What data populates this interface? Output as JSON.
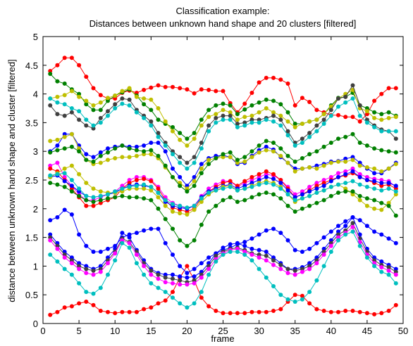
{
  "chart_data": {
    "type": "line",
    "title": "Classification example:",
    "subtitle": "Distances between unknown hand shape and 20 clusters [filtered]",
    "xlabel": "frame",
    "ylabel": "distance between unknown hand shape and cluster [filtered]",
    "xlim": [
      0,
      50
    ],
    "ylim": [
      0,
      5
    ],
    "xticks": [
      0,
      5,
      10,
      15,
      20,
      25,
      30,
      35,
      40,
      45,
      50
    ],
    "yticks": [
      0,
      0.5,
      1,
      1.5,
      2,
      2.5,
      3,
      3.5,
      4,
      4.5,
      5
    ],
    "grid": false,
    "x": [
      1,
      2,
      3,
      4,
      5,
      6,
      7,
      8,
      9,
      10,
      11,
      12,
      13,
      14,
      15,
      16,
      17,
      18,
      19,
      20,
      21,
      22,
      23,
      24,
      25,
      26,
      27,
      28,
      29,
      30,
      31,
      32,
      33,
      34,
      35,
      36,
      37,
      38,
      39,
      40,
      41,
      42,
      43,
      44,
      45,
      46,
      47,
      48,
      49
    ],
    "series": [
      {
        "color": "#ff0000",
        "values": [
          4.4,
          4.5,
          4.63,
          4.63,
          4.5,
          4.3,
          4.1,
          3.98,
          3.92,
          3.92,
          4.02,
          4.06,
          4.02,
          4.07,
          4.11,
          4.15,
          4.12,
          4.12,
          4.1,
          4.08,
          4.01,
          4.08,
          4.07,
          4.05,
          4.05,
          3.84,
          3.68,
          3.83,
          4.02,
          4.2,
          4.28,
          4.28,
          4.25,
          4.18,
          3.8,
          3.93,
          3.86,
          3.72,
          3.68,
          3.63,
          3.63,
          3.6,
          3.6,
          3.52,
          3.65,
          3.88,
          4.0,
          4.1,
          4.1
        ]
      },
      {
        "color": "#008000",
        "values": [
          4.35,
          4.22,
          4.18,
          4.08,
          4.0,
          3.82,
          3.72,
          3.72,
          3.88,
          3.97,
          4.03,
          4.08,
          3.97,
          3.82,
          3.72,
          3.55,
          3.48,
          3.42,
          3.32,
          3.22,
          3.32,
          3.55,
          3.72,
          3.8,
          3.83,
          3.8,
          3.65,
          3.73,
          3.8,
          3.85,
          3.9,
          3.88,
          3.82,
          3.68,
          3.48,
          3.48,
          3.52,
          3.55,
          3.65,
          3.8,
          3.93,
          3.95,
          4.02,
          3.8,
          3.75,
          3.68,
          3.65,
          3.68,
          3.62
        ]
      },
      {
        "color": "#bfbf00",
        "values": [
          3.92,
          3.95,
          3.98,
          4.05,
          3.95,
          3.88,
          3.8,
          3.85,
          3.93,
          3.97,
          4.05,
          4.1,
          3.95,
          3.92,
          3.9,
          3.75,
          3.52,
          3.35,
          3.2,
          3.1,
          3.22,
          3.45,
          3.6,
          3.65,
          3.72,
          3.68,
          3.55,
          3.6,
          3.62,
          3.68,
          3.75,
          3.68,
          3.62,
          3.52,
          3.42,
          3.48,
          3.52,
          3.55,
          3.65,
          3.78,
          3.92,
          4.0,
          4.07,
          3.75,
          3.7,
          3.58,
          3.55,
          3.58,
          3.6
        ]
      },
      {
        "color": "#404040",
        "values": [
          3.8,
          3.65,
          3.62,
          3.68,
          3.55,
          3.45,
          3.4,
          3.58,
          3.7,
          3.82,
          3.92,
          3.9,
          3.72,
          3.62,
          3.52,
          3.32,
          3.15,
          3.0,
          2.9,
          2.8,
          2.9,
          3.15,
          3.45,
          3.58,
          3.62,
          3.62,
          3.48,
          3.5,
          3.55,
          3.55,
          3.58,
          3.62,
          3.55,
          3.35,
          3.15,
          3.22,
          3.32,
          3.45,
          3.55,
          3.72,
          3.92,
          3.95,
          4.15,
          3.8,
          3.55,
          3.45,
          3.38,
          3.35,
          3.22
        ]
      },
      {
        "color": "#00bfbf",
        "values": [
          3.92,
          3.85,
          3.82,
          3.75,
          3.7,
          3.55,
          3.45,
          3.5,
          3.62,
          3.75,
          3.83,
          3.8,
          3.68,
          3.58,
          3.45,
          3.25,
          3.1,
          2.95,
          2.8,
          2.7,
          2.8,
          3.05,
          3.35,
          3.5,
          3.55,
          3.55,
          3.42,
          3.45,
          3.5,
          3.5,
          3.55,
          3.52,
          3.45,
          3.28,
          3.1,
          3.15,
          3.25,
          3.35,
          3.48,
          3.62,
          3.78,
          3.85,
          3.92,
          3.62,
          3.5,
          3.42,
          3.35,
          3.35,
          3.35
        ]
      },
      {
        "color": "#0000ff",
        "values": [
          3.0,
          3.1,
          3.3,
          3.3,
          3.1,
          2.95,
          2.9,
          2.98,
          3.05,
          3.08,
          3.1,
          3.08,
          3.08,
          3.1,
          3.15,
          3.15,
          3.0,
          2.7,
          2.55,
          2.4,
          2.55,
          2.78,
          2.88,
          2.92,
          2.93,
          2.9,
          2.78,
          2.8,
          2.92,
          3.02,
          3.08,
          3.03,
          2.9,
          2.8,
          2.7,
          2.7,
          2.72,
          2.75,
          2.78,
          2.82,
          2.83,
          2.87,
          2.9,
          2.8,
          2.7,
          2.62,
          2.62,
          2.7,
          2.8
        ]
      },
      {
        "color": "#bfbf00",
        "values": [
          3.18,
          3.2,
          3.25,
          3.3,
          3.05,
          2.85,
          2.78,
          2.8,
          2.85,
          2.88,
          2.9,
          2.9,
          2.92,
          2.95,
          2.95,
          2.88,
          2.72,
          2.55,
          2.45,
          2.35,
          2.48,
          2.7,
          2.85,
          2.88,
          2.9,
          2.9,
          2.8,
          2.82,
          2.9,
          2.98,
          3.02,
          3.0,
          2.92,
          2.8,
          2.65,
          2.7,
          2.72,
          2.7,
          2.75,
          2.8,
          2.82,
          2.82,
          2.85,
          2.75,
          2.72,
          2.7,
          2.65,
          2.7,
          2.78
        ]
      },
      {
        "color": "#008000",
        "values": [
          2.98,
          3.02,
          3.05,
          3.08,
          3.0,
          2.85,
          2.82,
          2.92,
          2.98,
          3.05,
          3.1,
          3.05,
          3.02,
          3.0,
          3.02,
          2.92,
          2.75,
          2.55,
          2.4,
          2.3,
          2.4,
          2.62,
          2.78,
          2.88,
          2.95,
          2.98,
          2.85,
          2.9,
          3.0,
          3.1,
          3.18,
          3.15,
          3.05,
          2.92,
          2.82,
          2.88,
          2.95,
          3.0,
          3.08,
          3.15,
          3.22,
          3.25,
          3.3,
          3.15,
          3.1,
          3.05,
          3.02,
          3.0,
          2.98
        ]
      },
      {
        "color": "#ff00ff",
        "values": [
          2.75,
          2.8,
          2.55,
          2.4,
          2.25,
          2.15,
          2.15,
          2.2,
          2.25,
          2.3,
          2.4,
          2.5,
          2.55,
          2.55,
          2.5,
          2.38,
          2.2,
          2.1,
          2.05,
          2.0,
          2.05,
          2.22,
          2.35,
          2.42,
          2.48,
          2.48,
          2.38,
          2.45,
          2.5,
          2.55,
          2.6,
          2.58,
          2.5,
          2.38,
          2.25,
          2.3,
          2.38,
          2.45,
          2.5,
          2.55,
          2.62,
          2.65,
          2.7,
          2.6,
          2.55,
          2.52,
          2.5,
          2.48,
          2.38
        ]
      },
      {
        "color": "#ff0000",
        "values": [
          2.7,
          2.65,
          2.5,
          2.35,
          2.2,
          2.05,
          2.05,
          2.1,
          2.15,
          2.2,
          2.35,
          2.45,
          2.5,
          2.52,
          2.48,
          2.35,
          2.15,
          2.02,
          1.98,
          1.95,
          2.0,
          2.18,
          2.3,
          2.38,
          2.45,
          2.48,
          2.4,
          2.48,
          2.55,
          2.6,
          2.65,
          2.6,
          2.5,
          2.35,
          2.2,
          2.25,
          2.32,
          2.4,
          2.45,
          2.5,
          2.55,
          2.58,
          2.62,
          2.55,
          2.5,
          2.45,
          2.4,
          2.42,
          2.35
        ]
      },
      {
        "color": "#0000ff",
        "values": [
          2.55,
          2.58,
          2.48,
          2.4,
          2.3,
          2.22,
          2.2,
          2.22,
          2.25,
          2.28,
          2.35,
          2.4,
          2.42,
          2.4,
          2.38,
          2.28,
          2.12,
          2.05,
          2.02,
          2.0,
          2.05,
          2.2,
          2.3,
          2.35,
          2.4,
          2.42,
          2.35,
          2.4,
          2.45,
          2.5,
          2.55,
          2.52,
          2.45,
          2.32,
          2.2,
          2.25,
          2.3,
          2.35,
          2.4,
          2.48,
          2.55,
          2.6,
          2.65,
          2.55,
          2.5,
          2.48,
          2.45,
          2.45,
          2.4
        ]
      },
      {
        "color": "#bfbf00",
        "values": [
          2.55,
          2.62,
          2.7,
          2.75,
          2.6,
          2.45,
          2.35,
          2.3,
          2.28,
          2.28,
          2.3,
          2.35,
          2.35,
          2.35,
          2.32,
          2.2,
          2.05,
          1.95,
          1.92,
          1.9,
          1.98,
          2.12,
          2.25,
          2.32,
          2.38,
          2.4,
          2.32,
          2.35,
          2.4,
          2.45,
          2.48,
          2.45,
          2.38,
          2.25,
          2.12,
          2.18,
          2.22,
          2.28,
          2.32,
          2.38,
          2.42,
          2.35,
          2.25,
          2.15,
          2.05,
          2.0,
          1.98,
          2.1,
          2.25
        ]
      },
      {
        "color": "#00bfbf",
        "values": [
          2.58,
          2.6,
          2.62,
          2.5,
          2.35,
          2.22,
          2.2,
          2.22,
          2.25,
          2.3,
          2.35,
          2.38,
          2.4,
          2.42,
          2.38,
          2.28,
          2.15,
          2.08,
          2.05,
          2.02,
          2.05,
          2.18,
          2.28,
          2.32,
          2.35,
          2.38,
          2.32,
          2.35,
          2.38,
          2.42,
          2.45,
          2.42,
          2.35,
          2.25,
          2.15,
          2.18,
          2.22,
          2.28,
          2.32,
          2.38,
          2.42,
          2.45,
          2.48,
          2.42,
          2.38,
          2.35,
          2.32,
          2.35,
          2.3
        ]
      },
      {
        "color": "#008000",
        "values": [
          2.45,
          2.42,
          2.38,
          2.3,
          2.22,
          2.15,
          2.12,
          2.15,
          2.18,
          2.2,
          2.22,
          2.2,
          2.2,
          2.18,
          2.15,
          2.0,
          1.82,
          1.65,
          1.45,
          1.35,
          1.45,
          1.72,
          1.95,
          2.05,
          2.15,
          2.2,
          2.12,
          2.15,
          2.2,
          2.25,
          2.28,
          2.25,
          2.18,
          2.05,
          1.95,
          2.0,
          2.05,
          2.1,
          2.15,
          2.22,
          2.28,
          2.3,
          2.3,
          2.22,
          2.18,
          2.15,
          2.1,
          2.05,
          1.88
        ]
      },
      {
        "color": "#ff0000",
        "values": [
          0.15,
          0.2,
          0.28,
          0.3,
          0.35,
          0.38,
          0.32,
          0.22,
          0.2,
          0.18,
          0.2,
          0.2,
          0.2,
          0.25,
          0.28,
          0.35,
          0.4,
          0.55,
          0.8,
          1.0,
          0.75,
          0.45,
          0.3,
          0.22,
          0.18,
          0.18,
          0.18,
          0.18,
          0.2,
          0.2,
          0.2,
          0.22,
          0.25,
          0.38,
          0.5,
          0.48,
          0.35,
          0.25,
          0.22,
          0.2,
          0.2,
          0.22,
          0.22,
          0.2,
          0.18,
          0.16,
          0.18,
          0.22,
          0.32
        ]
      },
      {
        "color": "#0000ff",
        "values": [
          1.8,
          1.85,
          1.98,
          1.9,
          1.55,
          1.35,
          1.25,
          1.25,
          1.3,
          1.35,
          1.5,
          1.55,
          1.58,
          1.62,
          1.65,
          1.65,
          1.4,
          1.2,
          1.0,
          0.88,
          0.95,
          1.05,
          1.15,
          1.22,
          1.28,
          1.32,
          1.38,
          1.42,
          1.48,
          1.55,
          1.62,
          1.65,
          1.58,
          1.45,
          1.28,
          1.25,
          1.3,
          1.4,
          1.5,
          1.6,
          1.7,
          1.78,
          1.85,
          1.8,
          1.7,
          1.6,
          1.55,
          1.48,
          1.4
        ]
      },
      {
        "color": "#0000ff",
        "values": [
          1.55,
          1.4,
          1.25,
          1.15,
          1.05,
          1.0,
          0.95,
          1.0,
          1.15,
          1.3,
          1.58,
          1.5,
          1.28,
          1.1,
          0.95,
          0.88,
          0.85,
          0.85,
          0.82,
          0.8,
          0.82,
          0.9,
          1.05,
          1.22,
          1.32,
          1.38,
          1.4,
          1.35,
          1.3,
          1.28,
          1.25,
          1.15,
          1.05,
          0.95,
          0.95,
          0.98,
          1.05,
          1.15,
          1.3,
          1.45,
          1.6,
          1.7,
          1.85,
          1.55,
          1.3,
          1.15,
          1.08,
          1.02,
          0.95
        ]
      },
      {
        "color": "#404040",
        "values": [
          1.5,
          1.35,
          1.2,
          1.1,
          1.0,
          0.95,
          0.92,
          0.95,
          1.1,
          1.25,
          1.48,
          1.42,
          1.25,
          1.05,
          0.92,
          0.85,
          0.8,
          0.78,
          0.75,
          0.72,
          0.75,
          0.85,
          1.0,
          1.18,
          1.25,
          1.3,
          1.32,
          1.28,
          1.22,
          1.2,
          1.18,
          1.1,
          1.02,
          0.95,
          0.92,
          0.95,
          1.0,
          1.1,
          1.25,
          1.4,
          1.55,
          1.62,
          1.75,
          1.48,
          1.25,
          1.1,
          1.02,
          0.98,
          0.9
        ]
      },
      {
        "color": "#ff00ff",
        "values": [
          1.45,
          1.3,
          1.15,
          1.05,
          0.95,
          0.88,
          0.85,
          0.9,
          1.05,
          1.22,
          1.45,
          1.4,
          1.2,
          1.0,
          0.85,
          0.78,
          0.72,
          0.7,
          0.68,
          0.68,
          0.7,
          0.8,
          0.95,
          1.12,
          1.22,
          1.28,
          1.3,
          1.25,
          1.2,
          1.15,
          1.1,
          1.02,
          0.95,
          0.88,
          0.85,
          0.9,
          0.95,
          1.05,
          1.2,
          1.35,
          1.5,
          1.58,
          1.68,
          1.42,
          1.2,
          1.05,
          0.98,
          0.92,
          0.85
        ]
      },
      {
        "color": "#00bfbf",
        "values": [
          1.2,
          1.08,
          0.95,
          0.85,
          0.7,
          0.55,
          0.52,
          0.62,
          0.85,
          1.1,
          1.4,
          1.32,
          1.05,
          0.85,
          0.7,
          0.62,
          0.55,
          0.45,
          0.35,
          0.28,
          0.35,
          0.55,
          0.85,
          1.08,
          1.2,
          1.25,
          1.25,
          1.2,
          1.1,
          0.95,
          0.8,
          0.65,
          0.5,
          0.42,
          0.38,
          0.42,
          0.55,
          0.75,
          1.0,
          1.25,
          1.45,
          1.55,
          1.6,
          1.35,
          1.15,
          1.0,
          0.9,
          0.85,
          0.7
        ]
      }
    ]
  }
}
